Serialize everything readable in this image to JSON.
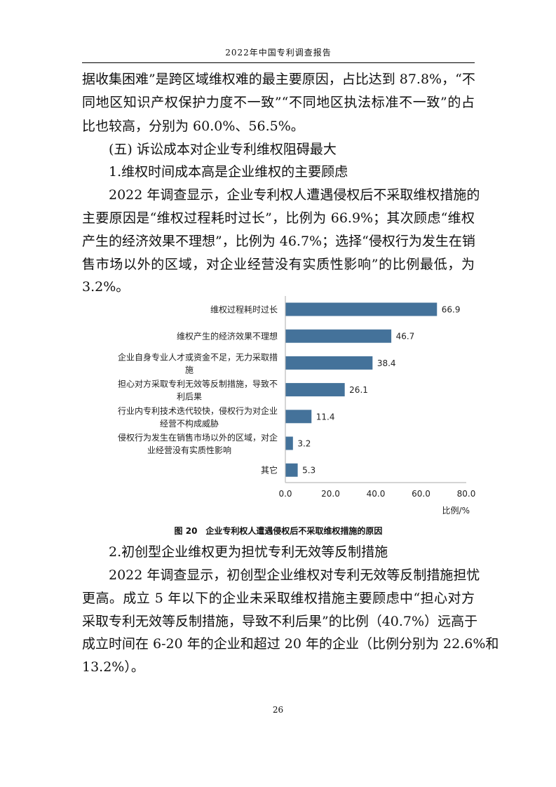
{
  "header": {
    "title": "2022年中国专利调查报告"
  },
  "para1": [
    "据收集困难”是跨区域维权难的最主要原因，占比达到 87.8%，“不",
    "同地区知识产权保护力度不一致”“不同地区执法标准不一致”的占",
    "比也较高，分别为 60.0%、56.5%。"
  ],
  "heading5": "(五) 诉讼成本对企业专利维权阻碍最大",
  "sub1": "1.维权时间成本高是企业维权的主要顾虑",
  "para2": [
    "2022 年调查显示，企业专利权人遭遇侵权后不采取维权措施的",
    "主要原因是“维权过程耗时过长”，比例为 66.9%；其次顾虑“维权",
    "产生的经济效果不理想”，比例为 46.7%；选择“侵权行为发生在销",
    "售市场以外的区域，对企业经营没有实质性影响”的比例最低，为",
    "3.2%。"
  ],
  "chart_data": {
    "type": "bar",
    "orientation": "horizontal",
    "categories": [
      [
        "维权过程耗时过长"
      ],
      [
        "维权产生的经济效果不理想"
      ],
      [
        "企业自身专业人才或资金不足，无力采取措",
        "施"
      ],
      [
        "担心对方采取专利无效等反制措施，导致不",
        "利后果"
      ],
      [
        "行业内专利技术迭代较快，侵权行为对企业",
        "经营不构成威胁"
      ],
      [
        "侵权行为发生在销售市场以外的区域，对企",
        "业经营没有实质性影响"
      ],
      [
        "其它"
      ]
    ],
    "values": [
      66.9,
      46.7,
      38.4,
      26.1,
      11.4,
      3.2,
      5.3
    ],
    "value_labels": [
      "66.9",
      "46.7",
      "38.4",
      "26.1",
      "11.4",
      "3.2",
      "5.3"
    ],
    "xticks": [
      "0.0",
      "20.0",
      "40.0",
      "60.0",
      "80.0"
    ],
    "xlim": [
      0,
      80
    ],
    "xlabel": "比例/%",
    "grid": false,
    "color": "#44729a"
  },
  "caption": "图 20　企业专利权人遭遇侵权后不采取维权措施的原因",
  "sub2": "2.初创型企业维权更为担忧专利无效等反制措施",
  "para3": [
    "2022 年调查显示，初创型企业维权对专利无效等反制措施担忧",
    "更高。成立 5 年以下的企业未采取维权措施主要顾虑中“担心对方",
    "采取专利无效等反制措施，导致不利后果”的比例（40.7%）远高于",
    "成立时间在 6-20 年的企业和超过 20 年的企业（比例分别为 22.6%和",
    "13.2%）。"
  ],
  "page_number": "26"
}
